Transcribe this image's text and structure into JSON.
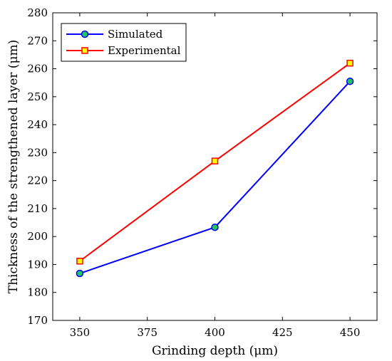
{
  "chart_data": {
    "type": "line",
    "title": "",
    "xlabel": "Grinding depth (μm)",
    "ylabel": "Thickness of the strengthened layer (μm)",
    "x": [
      350,
      400,
      450
    ],
    "xlim": [
      340,
      460
    ],
    "ylim": [
      170,
      280
    ],
    "xticks": [
      "350",
      "375",
      "400",
      "425",
      "450"
    ],
    "yticks": [
      "170",
      "180",
      "190",
      "200",
      "210",
      "220",
      "230",
      "240",
      "250",
      "260",
      "270",
      "280"
    ],
    "grid": false,
    "legend_position": "top-left",
    "series": [
      {
        "name": "Simulated",
        "values": [
          186.8,
          203.3,
          255.5
        ],
        "line_color": "#0000ff",
        "marker": "circle",
        "marker_fill": "#22c55e"
      },
      {
        "name": "Experimental",
        "values": [
          191.2,
          227.0,
          262.0
        ],
        "line_color": "#ff0000",
        "marker": "square",
        "marker_fill": "#ffff00"
      }
    ]
  }
}
